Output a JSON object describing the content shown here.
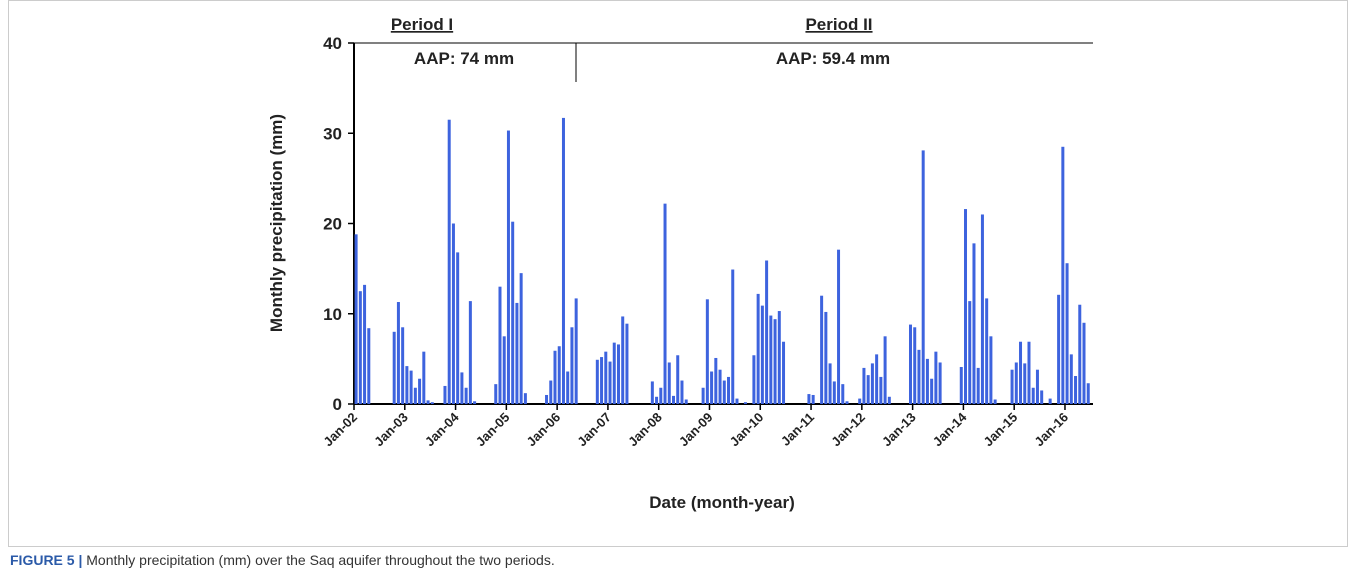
{
  "chart_data": {
    "type": "bar",
    "y_label": "Monthly precipitation (mm)",
    "x_label": "Date (month-year)",
    "annotations": [
      "Period I",
      "AAP: 74 mm",
      "Period II",
      "AAP: 59.4 mm"
    ],
    "caption_label": "FIGURE 5 |",
    "caption_text": "Monthly precipitation (mm) over the Saq aquifer throughout the two periods.",
    "color": "#3d63de",
    "ylim": [
      0,
      40
    ],
    "yticks": [
      0,
      10,
      20,
      30,
      40
    ],
    "categories": [
      "Jan-02",
      null,
      null,
      null,
      null,
      null,
      null,
      null,
      null,
      null,
      null,
      null,
      "Jan-03",
      null,
      null,
      null,
      null,
      null,
      null,
      null,
      null,
      null,
      null,
      null,
      "Jan-04",
      null,
      null,
      null,
      null,
      null,
      null,
      null,
      null,
      null,
      null,
      null,
      "Jan-05",
      null,
      null,
      null,
      null,
      null,
      null,
      null,
      null,
      null,
      null,
      null,
      "Jan-06",
      null,
      null,
      null,
      null,
      null,
      null,
      null,
      null,
      null,
      null,
      null,
      "Jan-07",
      null,
      null,
      null,
      null,
      null,
      null,
      null,
      null,
      null,
      null,
      null,
      "Jan-08",
      null,
      null,
      null,
      null,
      null,
      null,
      null,
      null,
      null,
      null,
      null,
      "Jan-09",
      null,
      null,
      null,
      null,
      null,
      null,
      null,
      null,
      null,
      null,
      null,
      "Jan-10",
      null,
      null,
      null,
      null,
      null,
      null,
      null,
      null,
      null,
      null,
      null,
      "Jan-11",
      null,
      null,
      null,
      null,
      null,
      null,
      null,
      null,
      null,
      null,
      null,
      "Jan-12",
      null,
      null,
      null,
      null,
      null,
      null,
      null,
      null,
      null,
      null,
      null,
      "Jan-13",
      null,
      null,
      null,
      null,
      null,
      null,
      null,
      null,
      null,
      null,
      null,
      "Jan-14",
      null,
      null,
      null,
      null,
      null,
      null,
      null,
      null,
      null,
      null,
      null,
      "Jan-15",
      null,
      null,
      null,
      null,
      null,
      null,
      null,
      null,
      null,
      null,
      null,
      "Jan-16",
      null,
      null,
      null,
      null,
      null
    ],
    "values": [
      18.8,
      12.5,
      13.2,
      8.4,
      0,
      0,
      0,
      0,
      0,
      8.0,
      11.3,
      8.5,
      4.2,
      3.7,
      1.8,
      2.8,
      5.8,
      0.4,
      0.2,
      0,
      0,
      2.0,
      31.5,
      20.0,
      16.8,
      3.5,
      1.8,
      11.4,
      0.3,
      0,
      0,
      0,
      0,
      2.2,
      13.0,
      7.5,
      30.3,
      20.2,
      11.2,
      14.5,
      1.2,
      0,
      0,
      0,
      0,
      1.0,
      2.6,
      5.9,
      6.4,
      31.7,
      3.6,
      8.5,
      11.7,
      0,
      0,
      0,
      0,
      4.9,
      5.2,
      5.8,
      4.7,
      6.8,
      6.6,
      9.7,
      8.9,
      0,
      0,
      0,
      0,
      0,
      2.5,
      0.8,
      1.8,
      22.2,
      4.6,
      0.9,
      5.4,
      2.6,
      0.5,
      0,
      0,
      0,
      1.8,
      11.6,
      3.6,
      5.1,
      3.8,
      2.6,
      3.0,
      14.9,
      0.6,
      0,
      0.2,
      0,
      5.4,
      12.2,
      10.9,
      15.9,
      9.8,
      9.4,
      10.3,
      6.9,
      0,
      0,
      0,
      0,
      0,
      1.1,
      1.0,
      0,
      12.0,
      10.2,
      4.5,
      2.5,
      17.1,
      2.2,
      0.3,
      0,
      0,
      0.6,
      4.0,
      3.2,
      4.5,
      5.5,
      3.0,
      7.5,
      0.8,
      0,
      0,
      0,
      0,
      8.8,
      8.5,
      6.0,
      28.1,
      5.0,
      2.8,
      5.8,
      4.6,
      0,
      0,
      0,
      0,
      4.1,
      21.6,
      11.4,
      17.8,
      4.0,
      21.0,
      11.7,
      7.5,
      0.5,
      0,
      0,
      0,
      3.8,
      4.6,
      6.9,
      4.5,
      6.9,
      1.8,
      3.8,
      1.5,
      0,
      0.6,
      0,
      12.1,
      28.5,
      15.6,
      5.5,
      3.1,
      11.0,
      9.0,
      2.3
    ]
  }
}
